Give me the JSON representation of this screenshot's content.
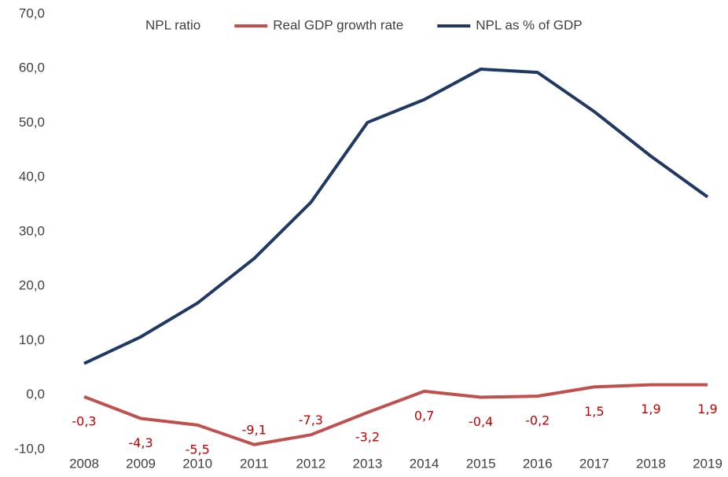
{
  "chart_data": {
    "type": "line",
    "categories": [
      "2008",
      "2009",
      "2010",
      "2011",
      "2012",
      "2013",
      "2014",
      "2015",
      "2016",
      "2017",
      "2018",
      "2019"
    ],
    "series": [
      {
        "name": "NPL ratio",
        "color": "#ffffff",
        "values": [
          null,
          null,
          null,
          null,
          null,
          null,
          null,
          null,
          null,
          null,
          null,
          null
        ]
      },
      {
        "name": "Real GDP growth rate",
        "color": "#c0504d",
        "values": [
          -0.3,
          -4.3,
          -5.5,
          -9.1,
          -7.3,
          -3.2,
          0.7,
          -0.4,
          -0.2,
          1.5,
          1.9,
          1.9
        ],
        "value_labels": [
          "-0,3",
          "-4,3",
          "-5,5",
          "-9,1",
          "-7,3",
          "-3,2",
          "0,7",
          "-0,4",
          "-0,2",
          "1,5",
          "1,9",
          "1,9"
        ]
      },
      {
        "name": "NPL as % of GDP",
        "color": "#1f3864",
        "values": [
          5.8,
          10.7,
          16.9,
          25.1,
          35.4,
          50.1,
          54.3,
          59.9,
          59.3,
          52.1,
          43.9,
          36.4
        ]
      }
    ],
    "ylim": [
      -10,
      70
    ],
    "yticks": [
      {
        "value": -10,
        "label": "-10,0"
      },
      {
        "value": 0,
        "label": "0,0"
      },
      {
        "value": 10,
        "label": "10,0"
      },
      {
        "value": 20,
        "label": "20,0"
      },
      {
        "value": 30,
        "label": "30,0"
      },
      {
        "value": 40,
        "label": "40,0"
      },
      {
        "value": 50,
        "label": "50,0"
      },
      {
        "value": 60,
        "label": "60,0"
      },
      {
        "value": 70,
        "label": "70,0"
      }
    ],
    "legend": "top",
    "grid": false
  }
}
